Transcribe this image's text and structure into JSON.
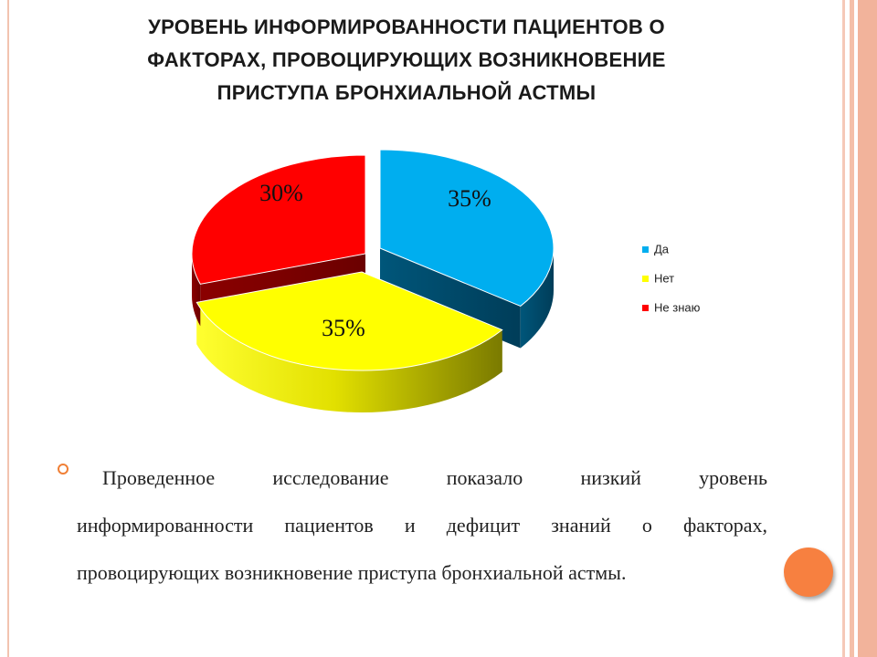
{
  "slide": {
    "title_lines": [
      "УРОВЕНЬ ИНФОРМИРОВАННОСТИ ПАЦИЕНТОВ О",
      "ФАКТОРАХ, ПРОВОЦИРУЮЩИХ ВОЗНИКНОВЕНИЕ",
      "ПРИСТУПА  БРОНХИАЛЬНОЙ АСТМЫ"
    ],
    "body_lines": [
      "Проведенное   исследование  показало  низкий  уровень",
      "информированности пациентов и дефицит знаний о факторах,",
      "провоцирующих  возникновение приступа  бронхиальной астмы."
    ],
    "accent_color": "#f78040"
  },
  "chart_data": {
    "type": "pie",
    "style": "3d-exploded",
    "slices": [
      {
        "label": "Да",
        "value": 35,
        "display": "35%",
        "color": "#00aeef"
      },
      {
        "label": "Нет",
        "value": 35,
        "display": "35%",
        "color": "#ffff00"
      },
      {
        "label": "Не знаю",
        "value": 30,
        "display": "30%",
        "color": "#ff0000"
      }
    ],
    "legend_position": "right"
  }
}
